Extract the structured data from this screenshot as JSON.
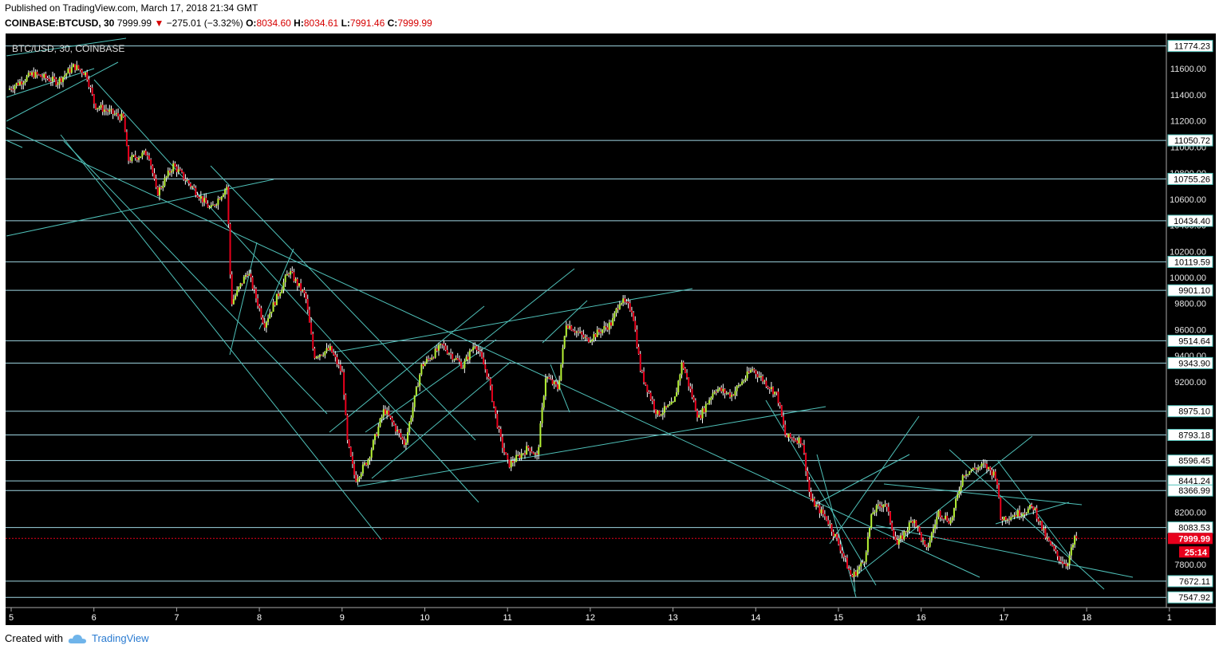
{
  "header": {
    "published": "Published on TradingView.com, March 17, 2018 21:34 GMT",
    "symbol": "COINBASE:BTCUSD, 30",
    "last": "7999.99",
    "arrow": "▼",
    "change": "−275.01 (−3.32%)",
    "o_label": "O:",
    "o": "8034.60",
    "h_label": "H:",
    "h": "8034.61",
    "l_label": "L:",
    "l": "7991.46",
    "c_label": "C:",
    "c": "7999.99"
  },
  "footer": {
    "created_with": "Created with",
    "brand": "TradingView"
  },
  "colors": {
    "background": "#000000",
    "up": "#b7f335",
    "down": "#e8001c",
    "line": "#4fc1b9",
    "hline": "#9fd6e2",
    "price_dot": "#e8001c"
  },
  "chart_data": {
    "type": "candlestick",
    "title": "BTC/USD, 30, COINBASE",
    "x_ticks": [
      "5",
      "6",
      "7",
      "8",
      "9",
      "10",
      "11",
      "12",
      "13",
      "14",
      "15",
      "16",
      "17",
      "18",
      "1"
    ],
    "y_ticks": [
      "11600.00",
      "11400.00",
      "11200.00",
      "11000.00",
      "10800.00",
      "10600.00",
      "10400.00",
      "10200.00",
      "10000.00",
      "9800.00",
      "9600.00",
      "9400.00",
      "9200.00",
      "8800.00",
      "8600.00",
      "8400.00",
      "8200.00",
      "7800.00"
    ],
    "y_range": [
      7470,
      11870
    ],
    "level_labels": [
      "11774.23",
      "11050.72",
      "10755.26",
      "10434.40",
      "10119.59",
      "9901.10",
      "9514.64",
      "9343.90",
      "8975.10",
      "8793.18",
      "8596.45",
      "8441.24",
      "8366.99",
      "8083.53",
      "7672.11",
      "7547.92"
    ],
    "last_price": "7999.99",
    "countdown": "25:14",
    "price_path": [
      [
        5.0,
        11440
      ],
      [
        5.3,
        11560
      ],
      [
        5.6,
        11500
      ],
      [
        5.8,
        11620
      ],
      [
        5.95,
        11560
      ],
      [
        6.05,
        11320
      ],
      [
        6.4,
        11220
      ],
      [
        6.45,
        10900
      ],
      [
        6.7,
        10960
      ],
      [
        6.8,
        10640
      ],
      [
        7.0,
        10860
      ],
      [
        7.3,
        10640
      ],
      [
        7.45,
        10520
      ],
      [
        7.65,
        10700
      ],
      [
        7.7,
        9800
      ],
      [
        7.9,
        10050
      ],
      [
        8.1,
        9640
      ],
      [
        8.4,
        10050
      ],
      [
        8.6,
        9850
      ],
      [
        8.7,
        9400
      ],
      [
        8.9,
        9450
      ],
      [
        9.05,
        9250
      ],
      [
        9.1,
        8750
      ],
      [
        9.2,
        8450
      ],
      [
        9.35,
        8600
      ],
      [
        9.55,
        8990
      ],
      [
        9.8,
        8720
      ],
      [
        10.0,
        9320
      ],
      [
        10.25,
        9480
      ],
      [
        10.5,
        9320
      ],
      [
        10.65,
        9500
      ],
      [
        10.8,
        9250
      ],
      [
        10.95,
        8770
      ],
      [
        11.05,
        8560
      ],
      [
        11.3,
        8700
      ],
      [
        11.4,
        8620
      ],
      [
        11.5,
        9240
      ],
      [
        11.65,
        9150
      ],
      [
        11.75,
        9650
      ],
      [
        12.0,
        9520
      ],
      [
        12.3,
        9650
      ],
      [
        12.4,
        9830
      ],
      [
        12.55,
        9750
      ],
      [
        12.65,
        9280
      ],
      [
        12.85,
        8950
      ],
      [
        13.05,
        9030
      ],
      [
        13.15,
        9350
      ],
      [
        13.35,
        8920
      ],
      [
        13.55,
        9150
      ],
      [
        13.75,
        9100
      ],
      [
        14.0,
        9300
      ],
      [
        14.15,
        9200
      ],
      [
        14.3,
        9100
      ],
      [
        14.4,
        8780
      ],
      [
        14.6,
        8750
      ],
      [
        14.7,
        8300
      ],
      [
        14.9,
        8150
      ],
      [
        15.05,
        7950
      ],
      [
        15.2,
        7700
      ],
      [
        15.35,
        7830
      ],
      [
        15.45,
        8200
      ],
      [
        15.6,
        8280
      ],
      [
        15.75,
        7950
      ],
      [
        15.95,
        8160
      ],
      [
        16.1,
        7900
      ],
      [
        16.25,
        8200
      ],
      [
        16.4,
        8130
      ],
      [
        16.55,
        8500
      ],
      [
        16.8,
        8560
      ],
      [
        16.95,
        8480
      ],
      [
        17.0,
        8150
      ],
      [
        17.25,
        8200
      ],
      [
        17.4,
        8240
      ],
      [
        17.55,
        8000
      ],
      [
        17.7,
        7850
      ],
      [
        17.8,
        7800
      ],
      [
        17.9,
        8000
      ]
    ]
  }
}
